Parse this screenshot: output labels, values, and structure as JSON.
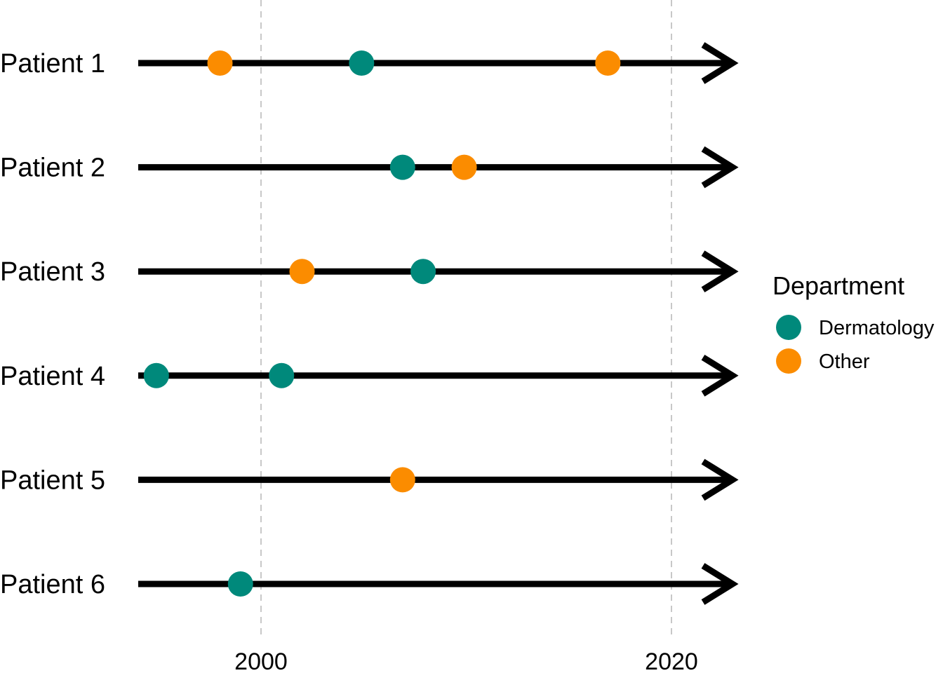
{
  "chart_data": {
    "type": "scatter",
    "title": "",
    "xlabel": "",
    "ylabel": "",
    "xlim": [
      1994.0,
      2023.5
    ],
    "x_ticks": [
      {
        "value": 2000,
        "label": "2000"
      },
      {
        "value": 2020,
        "label": "2020"
      }
    ],
    "grid": "vertical dashed at major x ticks",
    "legend": {
      "title": "Department",
      "placement": "right",
      "entries": [
        {
          "name": "Dermatology",
          "color": "#00897b"
        },
        {
          "name": "Other",
          "color": "#fb8c00"
        }
      ]
    },
    "patients": [
      {
        "label": "Patient 1",
        "events": [
          {
            "x": 1998.0,
            "department": "Other"
          },
          {
            "x": 2004.9,
            "department": "Dermatology"
          },
          {
            "x": 2016.9,
            "department": "Other"
          }
        ]
      },
      {
        "label": "Patient 2",
        "events": [
          {
            "x": 2006.9,
            "department": "Dermatology"
          },
          {
            "x": 2009.9,
            "department": "Other"
          }
        ]
      },
      {
        "label": "Patient 3",
        "events": [
          {
            "x": 2002.0,
            "department": "Other"
          },
          {
            "x": 2007.9,
            "department": "Dermatology"
          }
        ]
      },
      {
        "label": "Patient 4",
        "events": [
          {
            "x": 1994.9,
            "department": "Dermatology"
          },
          {
            "x": 2001.0,
            "department": "Dermatology"
          }
        ]
      },
      {
        "label": "Patient 5",
        "events": [
          {
            "x": 2006.9,
            "department": "Other"
          }
        ]
      },
      {
        "label": "Patient 6",
        "events": [
          {
            "x": 1999.0,
            "department": "Dermatology"
          }
        ]
      }
    ]
  }
}
